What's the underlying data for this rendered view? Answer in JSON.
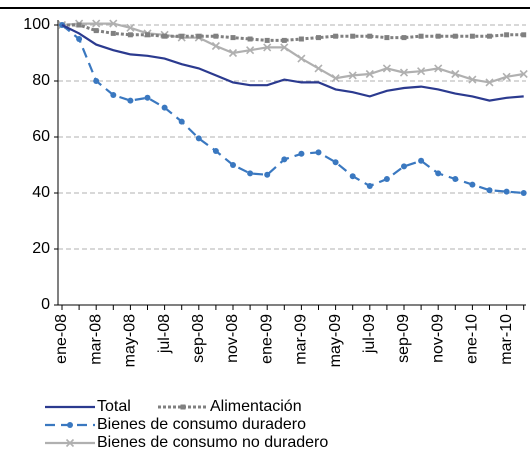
{
  "chart_data": {
    "type": "line",
    "categories": [
      "ene-08",
      null,
      "mar-08",
      null,
      "may-08",
      null,
      "jul-08",
      null,
      "sep-08",
      null,
      "nov-08",
      null,
      "ene-09",
      null,
      "mar-09",
      null,
      "may-09",
      null,
      "jul-09",
      null,
      "sep-09",
      null,
      "nov-09",
      null,
      "ene-10",
      null,
      "mar-10",
      null
    ],
    "series": [
      {
        "name": "Total",
        "color": "#2b3a8f",
        "dash": "none",
        "marker": "none",
        "values": [
          100,
          97,
          93,
          91,
          89.5,
          89,
          88,
          86,
          84.5,
          82,
          79.5,
          78.5,
          78.5,
          80.5,
          79.5,
          79.5,
          77,
          76,
          74.5,
          76.5,
          77.5,
          78,
          77,
          75.5,
          74.5,
          73,
          74,
          74.5
        ]
      },
      {
        "name": "Alimentación",
        "color": "#808080",
        "dash": "3 2",
        "marker": "square",
        "values": [
          100,
          100,
          98,
          97,
          96.5,
          96.5,
          96,
          96,
          96,
          96,
          95.5,
          95,
          94.5,
          94.5,
          95,
          95.5,
          96,
          96,
          96,
          95.5,
          95.5,
          96,
          96,
          96,
          96,
          96,
          96.5,
          96.5
        ]
      },
      {
        "name": "Bienes de consumo duradero",
        "color": "#3a78c0",
        "dash": "10 6",
        "marker": "circle",
        "values": [
          100,
          95,
          80,
          75,
          73,
          74,
          70.5,
          65.5,
          59.5,
          55,
          50,
          47,
          46.5,
          52,
          54,
          54.5,
          51,
          46,
          42.5,
          45,
          49.5,
          51.5,
          47,
          45,
          43,
          41,
          40.5,
          40
        ]
      },
      {
        "name": "Bienes de consumo no duradero",
        "color": "#b0b0b0",
        "dash": "none",
        "marker": "x",
        "values": [
          100,
          100.5,
          100.5,
          100.5,
          99,
          97,
          96.5,
          95.5,
          95.5,
          92.5,
          90,
          91,
          92,
          92,
          88,
          84.5,
          81,
          82,
          82.5,
          84.5,
          83,
          83.5,
          84.5,
          82.5,
          80.5,
          79.5,
          81.5,
          82.5
        ]
      }
    ],
    "ylim": [
      0,
      100
    ],
    "yticks": [
      0,
      20,
      40,
      60,
      80,
      100
    ],
    "grid": true
  }
}
